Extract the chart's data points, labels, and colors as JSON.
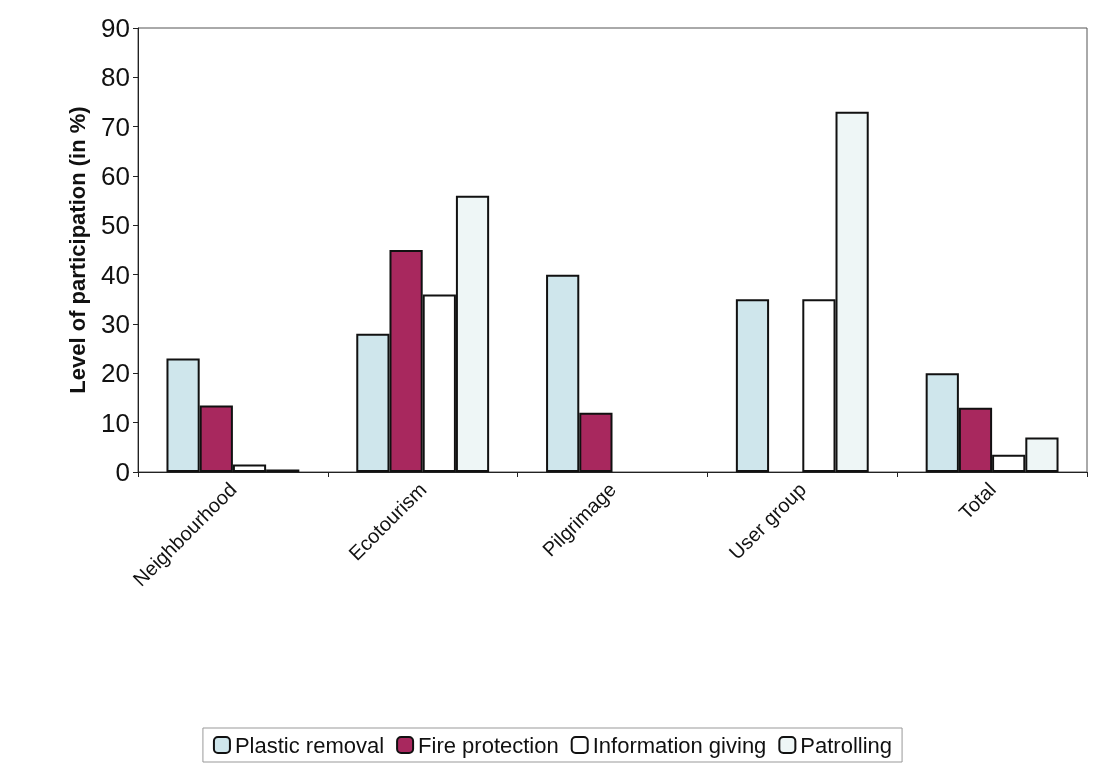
{
  "chart_data": {
    "type": "bar",
    "ylabel": "Level of participation (in %)",
    "categories": [
      "Neighbourhood",
      "Ecotourism",
      "Pilgrimage",
      "User group",
      "Total"
    ],
    "series": [
      {
        "name": "Plastic removal",
        "color": "#cfe6ec",
        "values": [
          23,
          28,
          40,
          35,
          20
        ]
      },
      {
        "name": "Fire protection",
        "color": "#a8285e",
        "values": [
          13.5,
          45,
          12,
          null,
          13
        ]
      },
      {
        "name": "Information giving",
        "color": "#ffffff",
        "values": [
          1.5,
          36,
          null,
          35,
          3.5
        ]
      },
      {
        "name": "Patrolling",
        "color": "#eef6f6",
        "values": [
          0.5,
          56,
          null,
          73,
          7
        ]
      }
    ],
    "ylim": [
      0,
      90
    ],
    "yticks": [
      0,
      10,
      20,
      30,
      40,
      50,
      60,
      70,
      80,
      90
    ],
    "grid": false,
    "legend": "bottom"
  }
}
